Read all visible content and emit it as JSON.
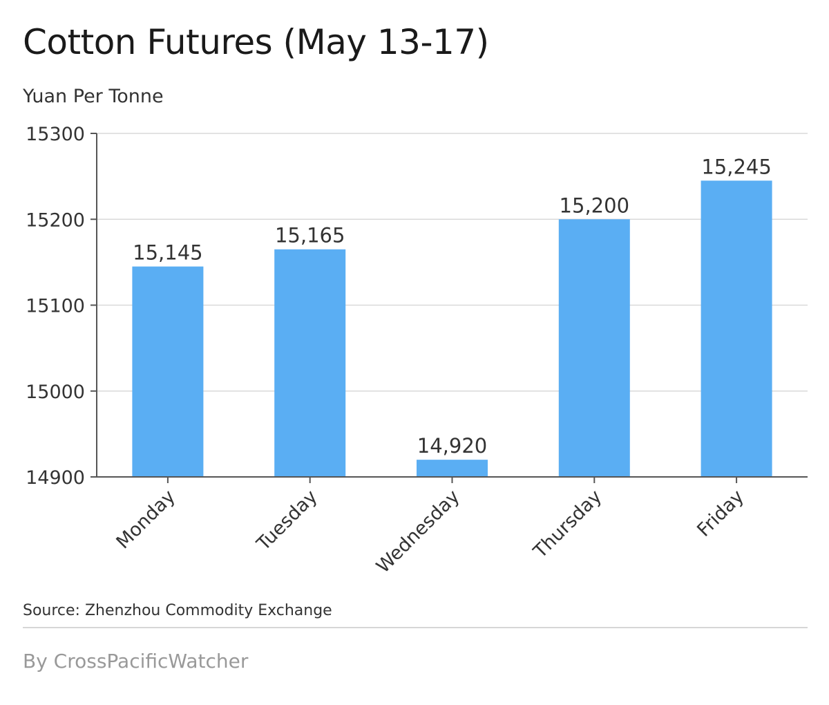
{
  "title": "Cotton Futures (May 13-17)",
  "subtitle": "Yuan Per Tonne",
  "source": "Source: Zhenzhou Commodity Exchange",
  "credit": "By CrossPacificWatcher",
  "colors": {
    "bar": "#5aaef3",
    "grid": "#d9d9d9",
    "axis": "#555555",
    "text": "#333333"
  },
  "chart_data": {
    "type": "bar",
    "title": "Cotton Futures (May 13-17)",
    "ylabel": "Yuan Per Tonne",
    "xlabel": "",
    "categories": [
      "Monday",
      "Tuesday",
      "Wednesday",
      "Thursday",
      "Friday"
    ],
    "values": [
      15145,
      15165,
      14920,
      15200,
      15245
    ],
    "data_labels": [
      "15,145",
      "15,165",
      "14,920",
      "15,200",
      "15,245"
    ],
    "ylim": [
      14900,
      15300
    ],
    "yticks": [
      14900,
      15000,
      15100,
      15200,
      15300
    ],
    "grid": true,
    "legend": "none"
  }
}
